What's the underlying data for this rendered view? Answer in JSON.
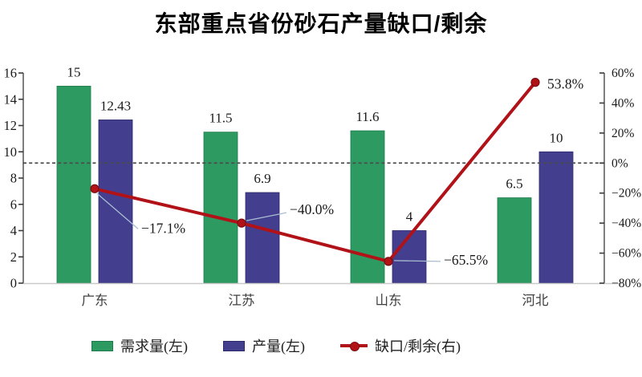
{
  "title": "东部重点省份砂石产量缺口/剩余",
  "chart_data": {
    "type": "combo-bar-line",
    "title": "东部重点省份砂石产量缺口/剩余",
    "categories": [
      "广东",
      "江苏",
      "山东",
      "河北"
    ],
    "series": [
      {
        "name": "需求量(左)",
        "type": "bar",
        "axis": "left",
        "values": [
          15,
          11.5,
          11.6,
          6.5
        ],
        "labels": [
          "15",
          "11.5",
          "11.6",
          "6.5"
        ]
      },
      {
        "name": "产量(左)",
        "type": "bar",
        "axis": "left",
        "values": [
          12.43,
          6.9,
          4,
          10
        ],
        "labels": [
          "12.43",
          "6.9",
          "4",
          "10"
        ]
      },
      {
        "name": "缺口/剩余(右)",
        "type": "line",
        "axis": "right",
        "values": [
          -17.1,
          -40.0,
          -65.5,
          53.8
        ],
        "labels": [
          "−17.1%",
          "−40.0%",
          "−65.5%",
          "53.8%"
        ]
      }
    ],
    "left_axis": {
      "min": 0,
      "max": 16,
      "step": 2,
      "tick_labels": [
        "0",
        "2",
        "4",
        "6",
        "8",
        "10",
        "12",
        "14",
        "16"
      ]
    },
    "right_axis": {
      "min": -80,
      "max": 60,
      "step": 20,
      "tick_labels": [
        "−80%",
        "−60%",
        "−40%",
        "−20%",
        "0%",
        "20%",
        "40%",
        "60%"
      ]
    },
    "zero_line": {
      "axis": "right",
      "value": 0,
      "style": "dashed"
    },
    "grid": false,
    "legend_position": "bottom"
  },
  "colors": {
    "demand_bar": "#2d9b61",
    "demand_border": "#1d7a4a",
    "production_bar": "#433e8e",
    "production_border": "#2c2a6b",
    "gap_line": "#b11218",
    "gap_marker_stroke": "#7d0b10",
    "zero_line": "#4c4c4c",
    "leader_line": "#a9bdd2",
    "axis": "#3a3a3a",
    "baseline": "#c9c9c9",
    "tick_text": "#1a1a1a",
    "category_text": "#3f3f3f",
    "value_text": "#1a1a1a",
    "annotation_text": "#1a1a1a"
  }
}
